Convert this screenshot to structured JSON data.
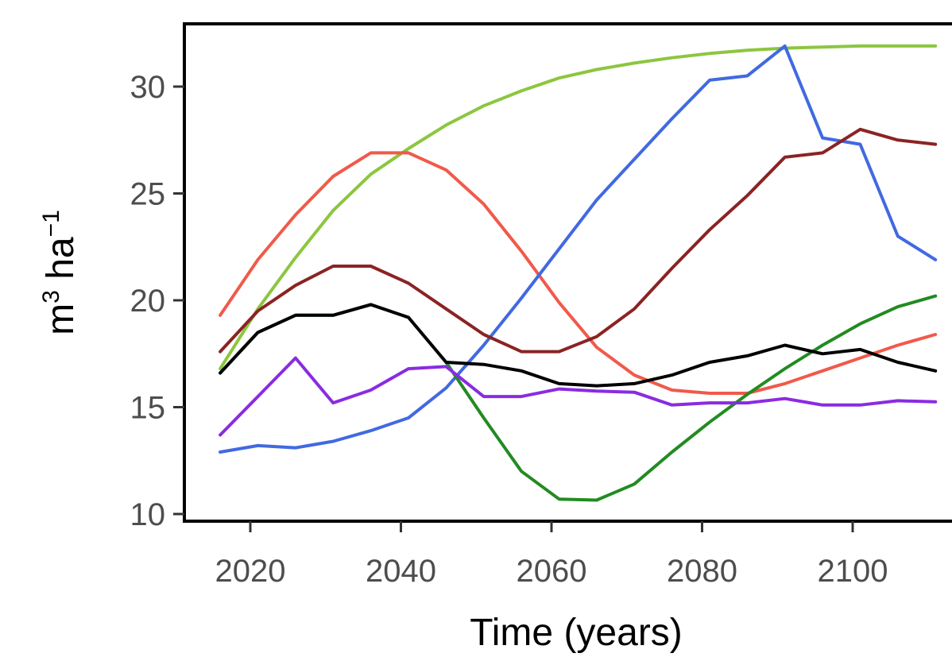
{
  "chart_data": {
    "type": "line",
    "title": "",
    "xlabel": "Time (years)",
    "ylabel": {
      "base": "m",
      "exp1": "3",
      "mid": " ha",
      "exp2": "−1"
    },
    "xlim": [
      2012,
      2112
    ],
    "ylim": [
      9.7,
      33
    ],
    "xticks": [
      2020,
      2040,
      2060,
      2080,
      2100
    ],
    "yticks": [
      10,
      15,
      20,
      25,
      30
    ],
    "grid": false,
    "legend": "none",
    "x": [
      2016,
      2021,
      2026,
      2031,
      2036,
      2041,
      2046,
      2051,
      2056,
      2061,
      2066,
      2071,
      2076,
      2081,
      2086,
      2091,
      2096,
      2101,
      2106,
      2111
    ],
    "series": [
      {
        "color": "#8CC63F",
        "values": [
          16.8,
          19.6,
          22.0,
          24.2,
          25.9,
          27.1,
          28.2,
          29.1,
          29.8,
          30.4,
          30.8,
          31.1,
          31.35,
          31.55,
          31.7,
          31.8,
          31.85,
          31.9,
          31.9,
          31.9
        ]
      },
      {
        "color": "#F05A4A",
        "values": [
          19.3,
          21.9,
          24.0,
          25.8,
          26.9,
          26.9,
          26.1,
          24.5,
          22.3,
          19.9,
          17.8,
          16.5,
          15.8,
          15.65,
          15.65,
          16.1,
          16.7,
          17.3,
          17.9,
          18.4
        ]
      },
      {
        "color": "#4169E1",
        "values": [
          12.9,
          13.2,
          13.1,
          13.4,
          13.9,
          14.5,
          15.9,
          17.9,
          20.1,
          22.4,
          24.7,
          26.6,
          28.5,
          30.3,
          30.5,
          31.9,
          27.6,
          27.3,
          23.0,
          21.9
        ]
      },
      {
        "color": "#8B2323",
        "values": [
          17.6,
          19.5,
          20.7,
          21.6,
          21.6,
          20.8,
          19.6,
          18.4,
          17.6,
          17.6,
          18.3,
          19.6,
          21.5,
          23.3,
          24.9,
          26.7,
          26.9,
          28.0,
          27.5,
          27.3
        ]
      },
      {
        "color": "#228B22",
        "values": [
          16.6,
          18.5,
          19.3,
          19.3,
          19.8,
          19.2,
          17.1,
          14.5,
          12.0,
          10.7,
          10.65,
          11.4,
          12.9,
          14.3,
          15.6,
          16.8,
          17.9,
          18.9,
          19.7,
          20.2
        ]
      },
      {
        "color": "#000000",
        "values": [
          16.6,
          18.5,
          19.3,
          19.3,
          19.8,
          19.2,
          17.1,
          17.0,
          16.7,
          16.1,
          16.0,
          16.1,
          16.5,
          17.1,
          17.4,
          17.9,
          17.5,
          17.7,
          17.1,
          16.7
        ]
      },
      {
        "color": "#8A2BE2",
        "values": [
          13.7,
          15.5,
          17.3,
          15.2,
          15.8,
          16.8,
          16.9,
          15.5,
          15.5,
          15.85,
          15.75,
          15.7,
          15.1,
          15.2,
          15.2,
          15.4,
          15.1,
          15.1,
          15.3,
          15.25
        ]
      }
    ]
  }
}
